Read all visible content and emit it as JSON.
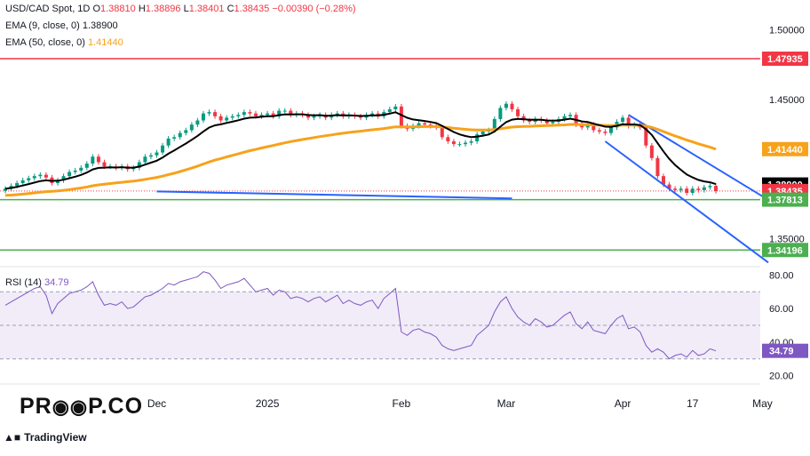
{
  "header": {
    "symbol": "USD/CAD Spot, 1D",
    "o_label": "O",
    "o": "1.38810",
    "h_label": "H",
    "h": "1.38896",
    "l_label": "L",
    "l": "1.38401",
    "c_label": "C",
    "c": "1.38435",
    "change": "−0.00390 (−0.28%)",
    "ema9_label": "EMA (9, close, 0)",
    "ema9": "1.38900",
    "ema50_label": "EMA (50, close, 0)",
    "ema50": "1.41440"
  },
  "branding": {
    "logo_text_left": "PR",
    "logo_text_right": "P.CO",
    "footer": "TradingView"
  },
  "colors": {
    "up": "#089981",
    "down": "#f23645",
    "ema9": "#000000",
    "ema50": "#f7a21b",
    "channel": "#2962ff",
    "support": "#4caf50",
    "resistance": "#f23645",
    "rsi": "#7e57c2",
    "rsi_band": "#ede7f6"
  },
  "chart_data": [
    {
      "type": "line",
      "title": "USD/CAD Spot, 1D",
      "y_ticks": [
        "1.50000",
        "1.45000",
        "1.35000"
      ],
      "ylim": [
        1.33,
        1.51
      ],
      "x_ticks": [
        "Dec",
        "2025",
        "Feb",
        "Mar",
        "Apr",
        "17",
        "May"
      ],
      "x_tick_index": [
        26,
        45,
        68,
        86,
        106,
        118,
        130
      ],
      "price_labels": [
        {
          "text": "1.47935",
          "value": 1.47935,
          "color": "#f23645"
        },
        {
          "text": "1.41440",
          "value": 1.4144,
          "color": "#f7a21b"
        },
        {
          "text": "1.38900",
          "value": 1.389,
          "color": "#000000"
        },
        {
          "text": "1.38435",
          "value": 1.38435,
          "color": "#f23645"
        },
        {
          "text": "1.37813",
          "value": 1.37813,
          "color": "#4caf50"
        },
        {
          "text": "1.34196",
          "value": 1.34196,
          "color": "#4caf50"
        }
      ],
      "horizontal_lines": [
        {
          "name": "resistance",
          "value": 1.47935,
          "color": "#f23645"
        },
        {
          "name": "support-1",
          "value": 1.37813,
          "color": "#4caf50"
        },
        {
          "name": "support-2",
          "value": 1.34196,
          "color": "#4caf50"
        }
      ],
      "trend_lines": [
        {
          "name": "blue-support-line",
          "points": [
            [
              26,
              1.384
            ],
            [
              87,
              1.379
            ]
          ]
        },
        {
          "name": "channel-upper",
          "points": [
            [
              107,
              1.439
            ],
            [
              131,
              1.378
            ]
          ]
        },
        {
          "name": "channel-lower",
          "points": [
            [
              103,
              1.42
            ],
            [
              131,
              1.333
            ]
          ]
        }
      ],
      "closes": [
        1.386,
        1.388,
        1.39,
        1.392,
        1.3935,
        1.395,
        1.396,
        1.394,
        1.39,
        1.392,
        1.395,
        1.398,
        1.399,
        1.401,
        1.404,
        1.409,
        1.405,
        1.402,
        1.402,
        1.401,
        1.402,
        1.4,
        1.401,
        1.405,
        1.409,
        1.41,
        1.412,
        1.417,
        1.422,
        1.423,
        1.426,
        1.428,
        1.432,
        1.435,
        1.44,
        1.441,
        1.438,
        1.435,
        1.437,
        1.438,
        1.439,
        1.441,
        1.44,
        1.438,
        1.439,
        1.44,
        1.438,
        1.442,
        1.442,
        1.439,
        1.44,
        1.439,
        1.437,
        1.438,
        1.439,
        1.437,
        1.439,
        1.44,
        1.438,
        1.439,
        1.438,
        1.437,
        1.439,
        1.44,
        1.438,
        1.441,
        1.443,
        1.445,
        1.431,
        1.429,
        1.431,
        1.433,
        1.432,
        1.431,
        1.43,
        1.423,
        1.42,
        1.418,
        1.418,
        1.419,
        1.42,
        1.425,
        1.427,
        1.428,
        1.436,
        1.444,
        1.447,
        1.443,
        1.438,
        1.435,
        1.434,
        1.436,
        1.435,
        1.433,
        1.434,
        1.436,
        1.438,
        1.439,
        1.432,
        1.43,
        1.432,
        1.428,
        1.427,
        1.426,
        1.43,
        1.434,
        1.437,
        1.431,
        1.432,
        1.43,
        1.417,
        1.408,
        1.395,
        1.389,
        1.386,
        1.385,
        1.386,
        1.383,
        1.386,
        1.385,
        1.387,
        1.388,
        1.3843
      ],
      "ema9": [
        1.386,
        1.3865,
        1.3873,
        1.3883,
        1.3893,
        1.3904,
        1.3915,
        1.392,
        1.3916,
        1.3917,
        1.3924,
        1.3935,
        1.3946,
        1.3959,
        1.3976,
        1.3998,
        1.4009,
        1.4011,
        1.4013,
        1.4012,
        1.4014,
        1.4011,
        1.4011,
        1.4019,
        1.4033,
        1.4047,
        1.4061,
        1.4083,
        1.4111,
        1.4135,
        1.416,
        1.4184,
        1.4211,
        1.4239,
        1.4271,
        1.4299,
        1.4315,
        1.4322,
        1.4332,
        1.4341,
        1.4351,
        1.4363,
        1.437,
        1.4372,
        1.4376,
        1.438,
        1.438,
        1.4388,
        1.4394,
        1.4393,
        1.4394,
        1.4394,
        1.4389,
        1.4387,
        1.4388,
        1.4384,
        1.4385,
        1.4388,
        1.4386,
        1.4387,
        1.4385,
        1.4382,
        1.4384,
        1.4387,
        1.4386,
        1.4391,
        1.4399,
        1.4409,
        1.4389,
        1.4369,
        1.4357,
        1.4352,
        1.4346,
        1.4339,
        1.4331,
        1.4311,
        1.4289,
        1.4267,
        1.425,
        1.4238,
        1.423,
        1.4234,
        1.4241,
        1.4249,
        1.4271,
        1.4305,
        1.4338,
        1.4356,
        1.4361,
        1.4359,
        1.4355,
        1.4356,
        1.4355,
        1.435,
        1.4348,
        1.435,
        1.4356,
        1.4363,
        1.4354,
        1.4343,
        1.4339,
        1.4327,
        1.4316,
        1.4305,
        1.4304,
        1.4312,
        1.4323,
        1.4321,
        1.4321,
        1.4317,
        1.4287,
        1.4246,
        1.4187,
        1.4128,
        1.4074,
        1.403,
        1.3995,
        1.3962,
        1.3941,
        1.3923,
        1.3912,
        1.3906,
        1.3893
      ],
      "ema50": [
        1.3812,
        1.3814,
        1.3817,
        1.3821,
        1.3825,
        1.383,
        1.3835,
        1.3839,
        1.3841,
        1.3844,
        1.3848,
        1.3853,
        1.3859,
        1.3865,
        1.3872,
        1.3881,
        1.3887,
        1.3892,
        1.3897,
        1.3901,
        1.3906,
        1.391,
        1.3914,
        1.392,
        1.3927,
        1.3934,
        1.3941,
        1.395,
        1.3961,
        1.3971,
        1.3983,
        1.3995,
        1.4008,
        1.4022,
        1.4037,
        1.4052,
        1.4065,
        1.4076,
        1.4088,
        1.4099,
        1.411,
        1.4122,
        1.4133,
        1.4142,
        1.4152,
        1.4162,
        1.417,
        1.418,
        1.4189,
        1.4198,
        1.4206,
        1.4213,
        1.422,
        1.4227,
        1.4234,
        1.424,
        1.4246,
        1.4253,
        1.4258,
        1.4264,
        1.4269,
        1.4273,
        1.4278,
        1.4283,
        1.4287,
        1.4292,
        1.4298,
        1.4304,
        1.4304,
        1.4304,
        1.4304,
        1.4305,
        1.4306,
        1.4306,
        1.4306,
        1.4303,
        1.4299,
        1.4294,
        1.429,
        1.4286,
        1.4283,
        1.4281,
        1.4281,
        1.4281,
        1.4284,
        1.429,
        1.4297,
        1.4302,
        1.4305,
        1.4307,
        1.4308,
        1.431,
        1.4312,
        1.4313,
        1.4314,
        1.4316,
        1.4318,
        1.4321,
        1.4321,
        1.432,
        1.432,
        1.4318,
        1.4316,
        1.4314,
        1.4313,
        1.4314,
        1.4316,
        1.4316,
        1.4316,
        1.4315,
        1.4309,
        1.43,
        1.4286,
        1.427,
        1.4254,
        1.4238,
        1.4224,
        1.4209,
        1.4196,
        1.4182,
        1.417,
        1.4158,
        1.4144
      ]
    },
    {
      "type": "line",
      "title": "RSI (14)",
      "value_text": "34.79",
      "value": 34.79,
      "ylim": [
        15,
        85
      ],
      "y_ticks": [
        "80.00",
        "60.00",
        "40.00",
        "20.00"
      ],
      "y_tick_values": [
        80,
        60,
        40,
        20
      ],
      "levels": [
        70,
        50,
        30
      ],
      "values": [
        62,
        64,
        66,
        68,
        70,
        72,
        73,
        68,
        57,
        63,
        66,
        69,
        70,
        71,
        73,
        76,
        68,
        62,
        63,
        62,
        64,
        60,
        61,
        64,
        67,
        68,
        70,
        72,
        75,
        74,
        76,
        77,
        78,
        79,
        82,
        81,
        77,
        72,
        74,
        75,
        76,
        78,
        74,
        70,
        71,
        72,
        68,
        71,
        70,
        66,
        67,
        66,
        64,
        66,
        67,
        64,
        66,
        68,
        63,
        65,
        63,
        62,
        64,
        65,
        60,
        66,
        69,
        72,
        46,
        44,
        47,
        48,
        46,
        45,
        43,
        38,
        36,
        35,
        36,
        37,
        38,
        44,
        47,
        50,
        58,
        64,
        67,
        60,
        55,
        52,
        50,
        54,
        52,
        49,
        50,
        53,
        56,
        58,
        51,
        48,
        52,
        47,
        46,
        45,
        50,
        54,
        56,
        48,
        49,
        46,
        38,
        34,
        36,
        34,
        30,
        32,
        33,
        31,
        35,
        32,
        33,
        36,
        34.79
      ]
    }
  ]
}
